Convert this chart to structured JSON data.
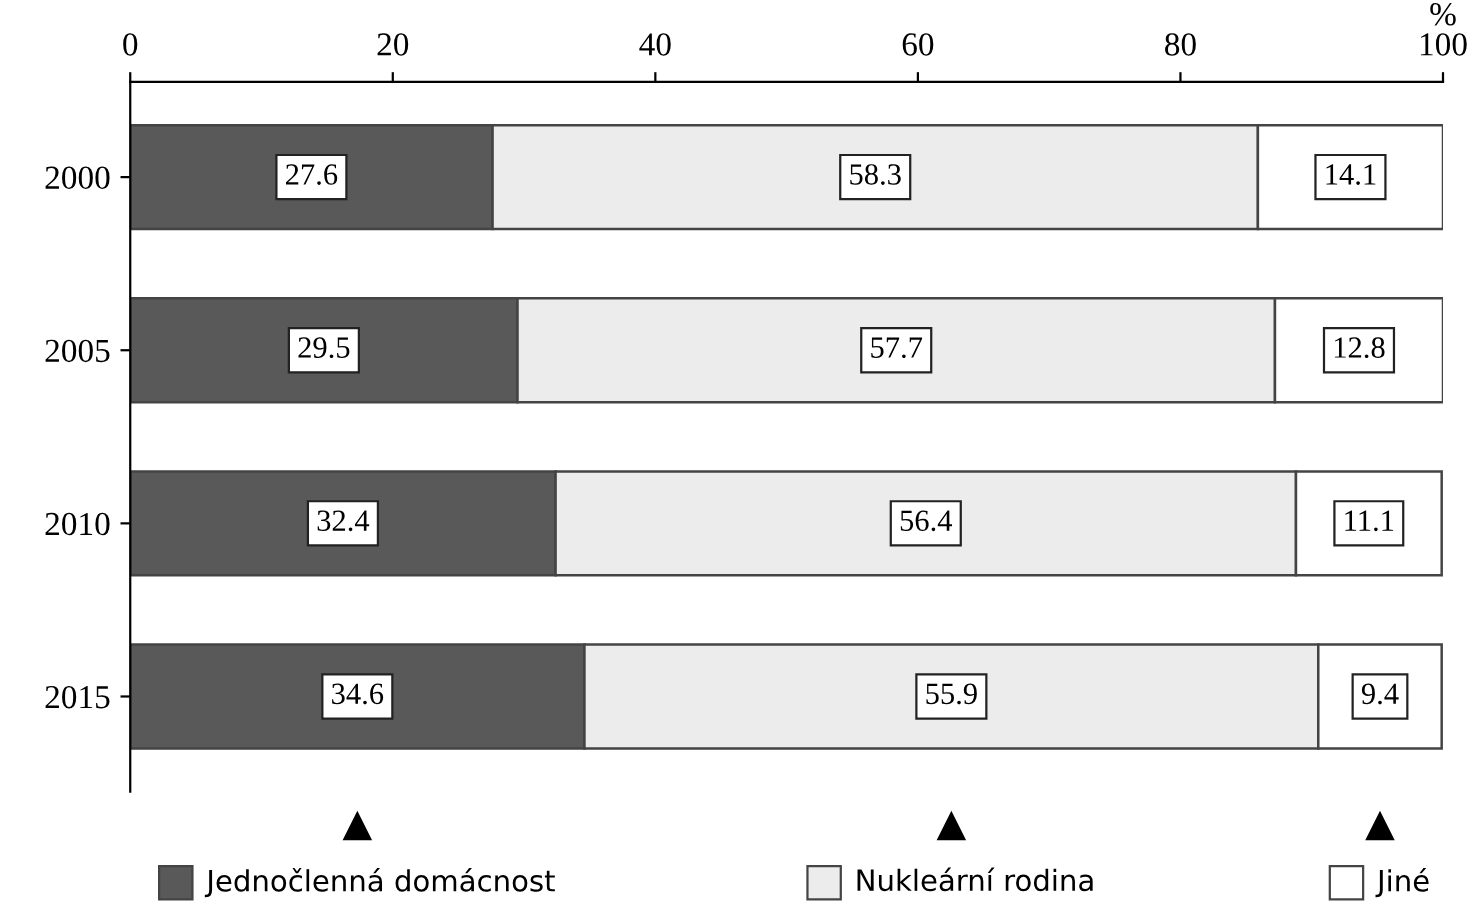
{
  "chart_data": {
    "type": "bar",
    "orientation": "horizontal",
    "stacked": true,
    "data_labels": true,
    "grid": false,
    "legend": "bottom",
    "xlabel": "%",
    "categories": [
      "2000",
      "2005",
      "2010",
      "2015"
    ],
    "xlim": [
      0,
      100
    ],
    "xticks": [
      0,
      20,
      40,
      60,
      80,
      100
    ],
    "series": [
      {
        "name": "Jednočlenná domácnost",
        "color": "#595959",
        "values": [
          27.6,
          29.5,
          32.4,
          34.6
        ]
      },
      {
        "name": "Nukleární rodina",
        "color": "#ececec",
        "values": [
          58.3,
          57.7,
          56.4,
          55.9
        ]
      },
      {
        "name": "Jiné",
        "color": "#ffffff",
        "values": [
          14.1,
          12.8,
          11.1,
          9.4
        ]
      }
    ]
  }
}
